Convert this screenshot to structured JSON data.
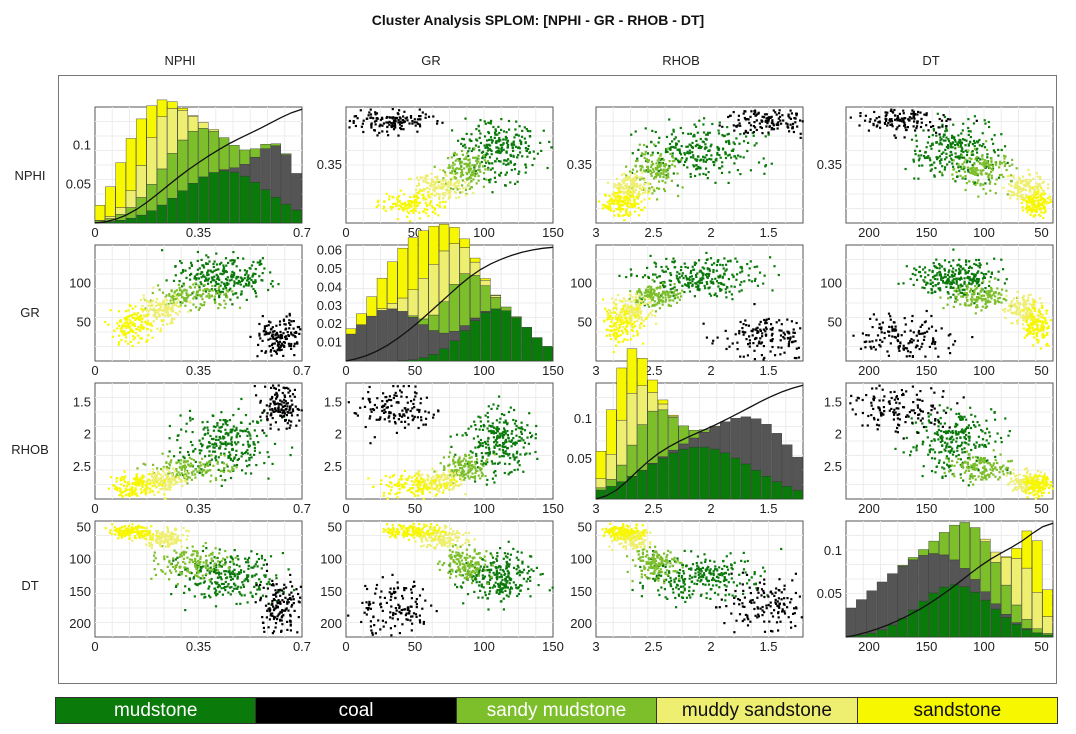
{
  "title": "Cluster Analysis SPLOM: [NPHI - GR - RHOB - DT]",
  "variables": [
    "NPHI",
    "GR",
    "RHOB",
    "DT"
  ],
  "legend": [
    {
      "label": "mudstone",
      "color": "#0a7a0a",
      "text_color": "#ffffff"
    },
    {
      "label": "coal",
      "color": "#000000",
      "text_color": "#ffffff"
    },
    {
      "label": "sandy mudstone",
      "color": "#7cbf2a",
      "text_color": "#ffffff"
    },
    {
      "label": "muddy sandstone",
      "color": "#eeee70",
      "text_color": "#111111"
    },
    {
      "label": "sandstone",
      "color": "#f7f700",
      "text_color": "#111111"
    }
  ],
  "chart_data": {
    "type": "scatter",
    "title": "Cluster Analysis SPLOM: [NPHI - GR - RHOB - DT]",
    "description_of_layout": "4x4 scatterplot matrix; diagonal panels are stacked histograms per cluster with a cumulative curve",
    "axes": {
      "NPHI": {
        "range": [
          0,
          0.7
        ],
        "ticks": [
          0,
          0.35,
          0.7
        ],
        "tick_labels": [
          "0",
          "0.35",
          "0.7"
        ],
        "row_ticks": [
          0.35
        ],
        "row_tick_labels": [
          "0.35"
        ]
      },
      "GR": {
        "range": [
          0,
          150
        ],
        "ticks": [
          0,
          50,
          100,
          150
        ],
        "tick_labels": [
          "0",
          "50",
          "100",
          "150"
        ],
        "row_ticks": [
          50,
          100
        ],
        "row_tick_labels": [
          "50",
          "100"
        ]
      },
      "RHOB": {
        "range": [
          3,
          1.2
        ],
        "ticks": [
          3,
          2.5,
          2,
          1.5
        ],
        "tick_labels": [
          "3",
          "2.5",
          "2",
          "1.5"
        ],
        "row_ticks": [
          1.5,
          2,
          2.5
        ],
        "row_tick_labels": [
          "1.5",
          "2",
          "2.5"
        ]
      },
      "DT": {
        "range": [
          220,
          40
        ],
        "ticks": [
          200,
          150,
          100,
          50
        ],
        "tick_labels": [
          "200",
          "150",
          "100",
          "50"
        ],
        "row_ticks": [
          50,
          100,
          150,
          200
        ],
        "row_tick_labels": [
          "50",
          "100",
          "150",
          "200"
        ]
      }
    },
    "diagonal_y_ticks": {
      "NPHI": {
        "ticks": [
          0.05,
          0.1
        ],
        "labels": [
          "0.05",
          "0.1"
        ],
        "ymax": 0.15
      },
      "GR": {
        "ticks": [
          0.01,
          0.02,
          0.03,
          0.04,
          0.05,
          0.06
        ],
        "labels": [
          "0.01",
          "0.02",
          "0.03",
          "0.04",
          "0.05",
          "0.06"
        ],
        "ymax": 0.063
      },
      "RHOB": {
        "ticks": [
          0.05,
          0.1
        ],
        "labels": [
          "0.05",
          "0.1"
        ],
        "ymax": 0.145
      },
      "DT": {
        "ticks": [
          0.05,
          0.1
        ],
        "labels": [
          "0.05",
          "0.1"
        ],
        "ymax": 0.135
      }
    },
    "clusters": [
      {
        "name": "mudstone",
        "color": "#0a7a0a",
        "NPHI": [
          0.28,
          0.6
        ],
        "GR": [
          85,
          135
        ],
        "RHOB": [
          2.6,
          1.6
        ],
        "DT": [
          90,
          160
        ]
      },
      {
        "name": "coal",
        "color": "#000000",
        "NPHI": [
          0.55,
          0.7
        ],
        "GR": [
          5,
          60
        ],
        "RHOB": [
          1.9,
          1.2
        ],
        "DT": [
          130,
          215
        ]
      },
      {
        "name": "sandy mudstone",
        "color": "#7cbf2a",
        "NPHI": [
          0.2,
          0.45
        ],
        "GR": [
          70,
          100
        ],
        "RHOB": [
          2.7,
          2.3
        ],
        "DT": [
          80,
          130
        ]
      },
      {
        "name": "muddy sandstone",
        "color": "#eeee70",
        "NPHI": [
          0.15,
          0.3
        ],
        "GR": [
          50,
          85
        ],
        "RHOB": [
          2.85,
          2.55
        ],
        "DT": [
          50,
          80
        ]
      },
      {
        "name": "sandstone",
        "color": "#f7f700",
        "NPHI": [
          0.05,
          0.2
        ],
        "GR": [
          25,
          70
        ],
        "RHOB": [
          2.95,
          2.6
        ],
        "DT": [
          45,
          65
        ]
      }
    ]
  }
}
